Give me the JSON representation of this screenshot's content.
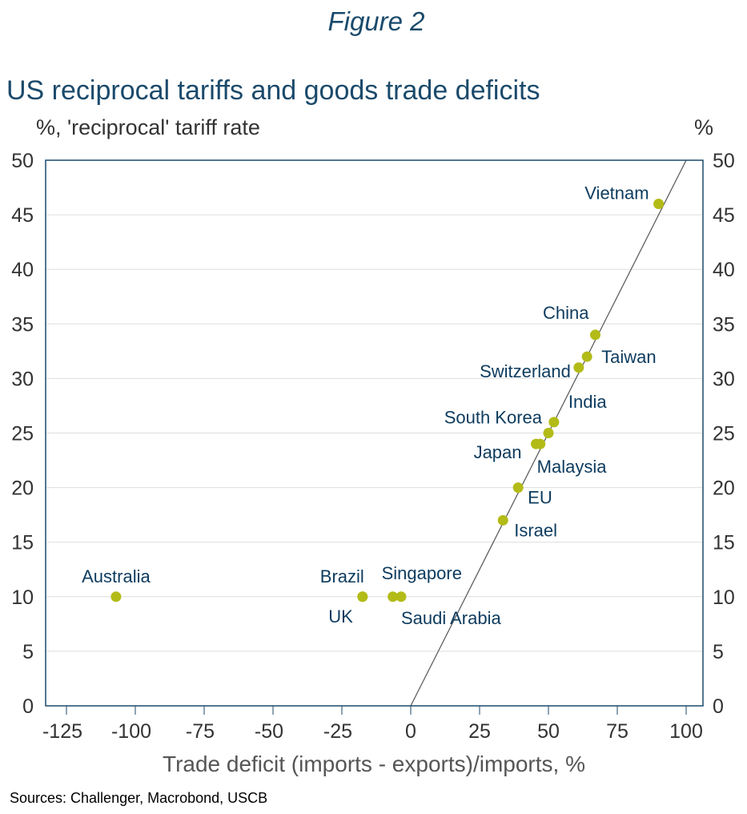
{
  "figure_label": "Figure 2",
  "chart_data": {
    "type": "scatter",
    "title": "US reciprocal tariffs and goods trade deficits",
    "ylabel_left": "%, 'reciprocal' tariff rate",
    "ylabel_right": "%",
    "xlabel": "Trade deficit (imports - exports)/imports, %",
    "xlim": [
      -130,
      108
    ],
    "ylim": [
      0,
      50
    ],
    "xticks": [
      -125,
      -100,
      -75,
      -50,
      -25,
      0,
      25,
      50,
      75,
      100
    ],
    "yticks": [
      0,
      5,
      10,
      15,
      20,
      25,
      30,
      35,
      40,
      45,
      50
    ],
    "grid": "horizontal",
    "colors": {
      "points": "#b3bb17",
      "labels": "#0d3b5e",
      "line": "#555555",
      "axis": "#1b4a6b"
    },
    "reference_line": {
      "slope": 0.5,
      "intercept": 0
    },
    "points": [
      {
        "name": "Vietnam",
        "x": 90,
        "y": 46
      },
      {
        "name": "China",
        "x": 67,
        "y": 34
      },
      {
        "name": "Taiwan",
        "x": 64,
        "y": 32
      },
      {
        "name": "Switzerland",
        "x": 61,
        "y": 31
      },
      {
        "name": "India",
        "x": 52,
        "y": 26
      },
      {
        "name": "South Korea",
        "x": 50,
        "y": 25
      },
      {
        "name": "Malaysia",
        "x": 47,
        "y": 24
      },
      {
        "name": "Japan",
        "x": 45.5,
        "y": 24
      },
      {
        "name": "EU",
        "x": 39,
        "y": 20
      },
      {
        "name": "Israel",
        "x": 33.5,
        "y": 17
      },
      {
        "name": "Brazil",
        "x": -17.5,
        "y": 10
      },
      {
        "name": "UK",
        "x": -17.5,
        "y": 10
      },
      {
        "name": "Singapore",
        "x": -6.5,
        "y": 10
      },
      {
        "name": "Saudi Arabia",
        "x": -3.5,
        "y": 10
      },
      {
        "name": "Australia",
        "x": -107,
        "y": 10
      }
    ]
  },
  "source": "Sources: Challenger, Macrobond, USCB"
}
